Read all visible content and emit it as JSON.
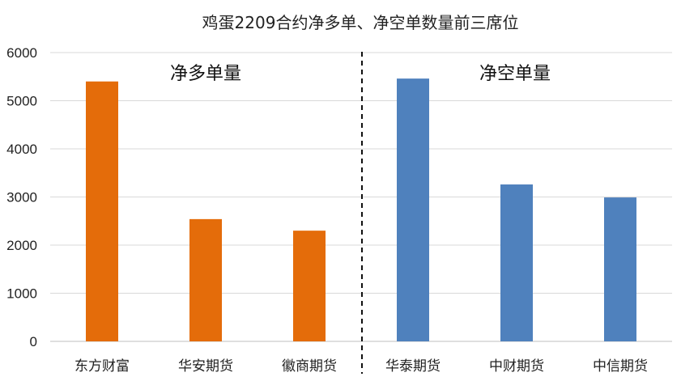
{
  "chart_data": {
    "type": "bar",
    "title": "鸡蛋2209合约净多单、净空单数量前三席位",
    "xlabel": "",
    "ylabel": "",
    "ylim": [
      0,
      6000
    ],
    "yticks": [
      0,
      1000,
      2000,
      3000,
      4000,
      5000,
      6000
    ],
    "grid": true,
    "categories": [
      "东方财富",
      "华安期货",
      "徽商期货",
      "华泰期货",
      "中财期货",
      "中信期货"
    ],
    "values": [
      5400,
      2540,
      2300,
      5460,
      3260,
      2990
    ],
    "bar_colors": [
      "#e46c0a",
      "#e46c0a",
      "#e46c0a",
      "#4f81bd",
      "#4f81bd",
      "#4f81bd"
    ],
    "annotations": [
      "净多单量",
      "净空单量"
    ]
  }
}
